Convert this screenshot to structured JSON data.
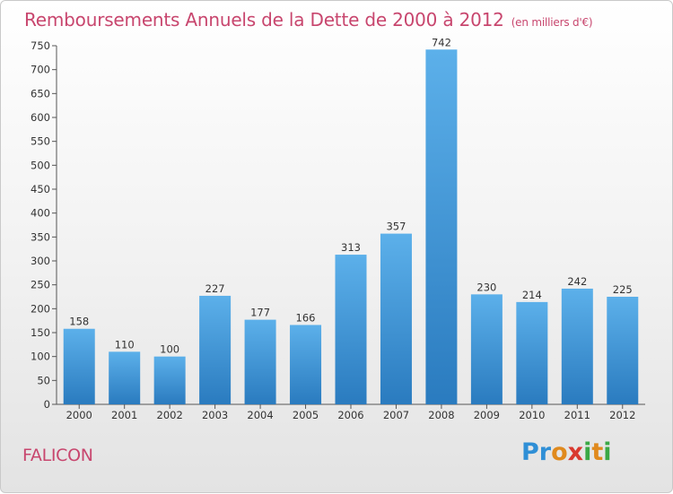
{
  "header": {
    "title": "Remboursements Annuels de la Dette de 2000 à 2012",
    "unit": "(en milliers d'€)"
  },
  "footer": {
    "commune": "FALICON",
    "logo": "Proxiti"
  },
  "colors": {
    "title": "#c8466e",
    "bar_top": "#5cb0ea",
    "bar_bottom": "#2a7bbf"
  },
  "chart_data": {
    "type": "bar",
    "title": "Remboursements Annuels de la Dette de 2000 à 2012",
    "xlabel": "",
    "ylabel": "",
    "categories": [
      "2000",
      "2001",
      "2002",
      "2003",
      "2004",
      "2005",
      "2006",
      "2007",
      "2008",
      "2009",
      "2010",
      "2011",
      "2012"
    ],
    "values": [
      158,
      110,
      100,
      227,
      177,
      166,
      313,
      357,
      742,
      230,
      214,
      242,
      225
    ],
    "ylim": [
      0,
      750
    ],
    "yticks": [
      0,
      50,
      100,
      150,
      200,
      250,
      300,
      350,
      400,
      450,
      500,
      550,
      600,
      650,
      700,
      750
    ],
    "grid": false,
    "legend": "none"
  }
}
